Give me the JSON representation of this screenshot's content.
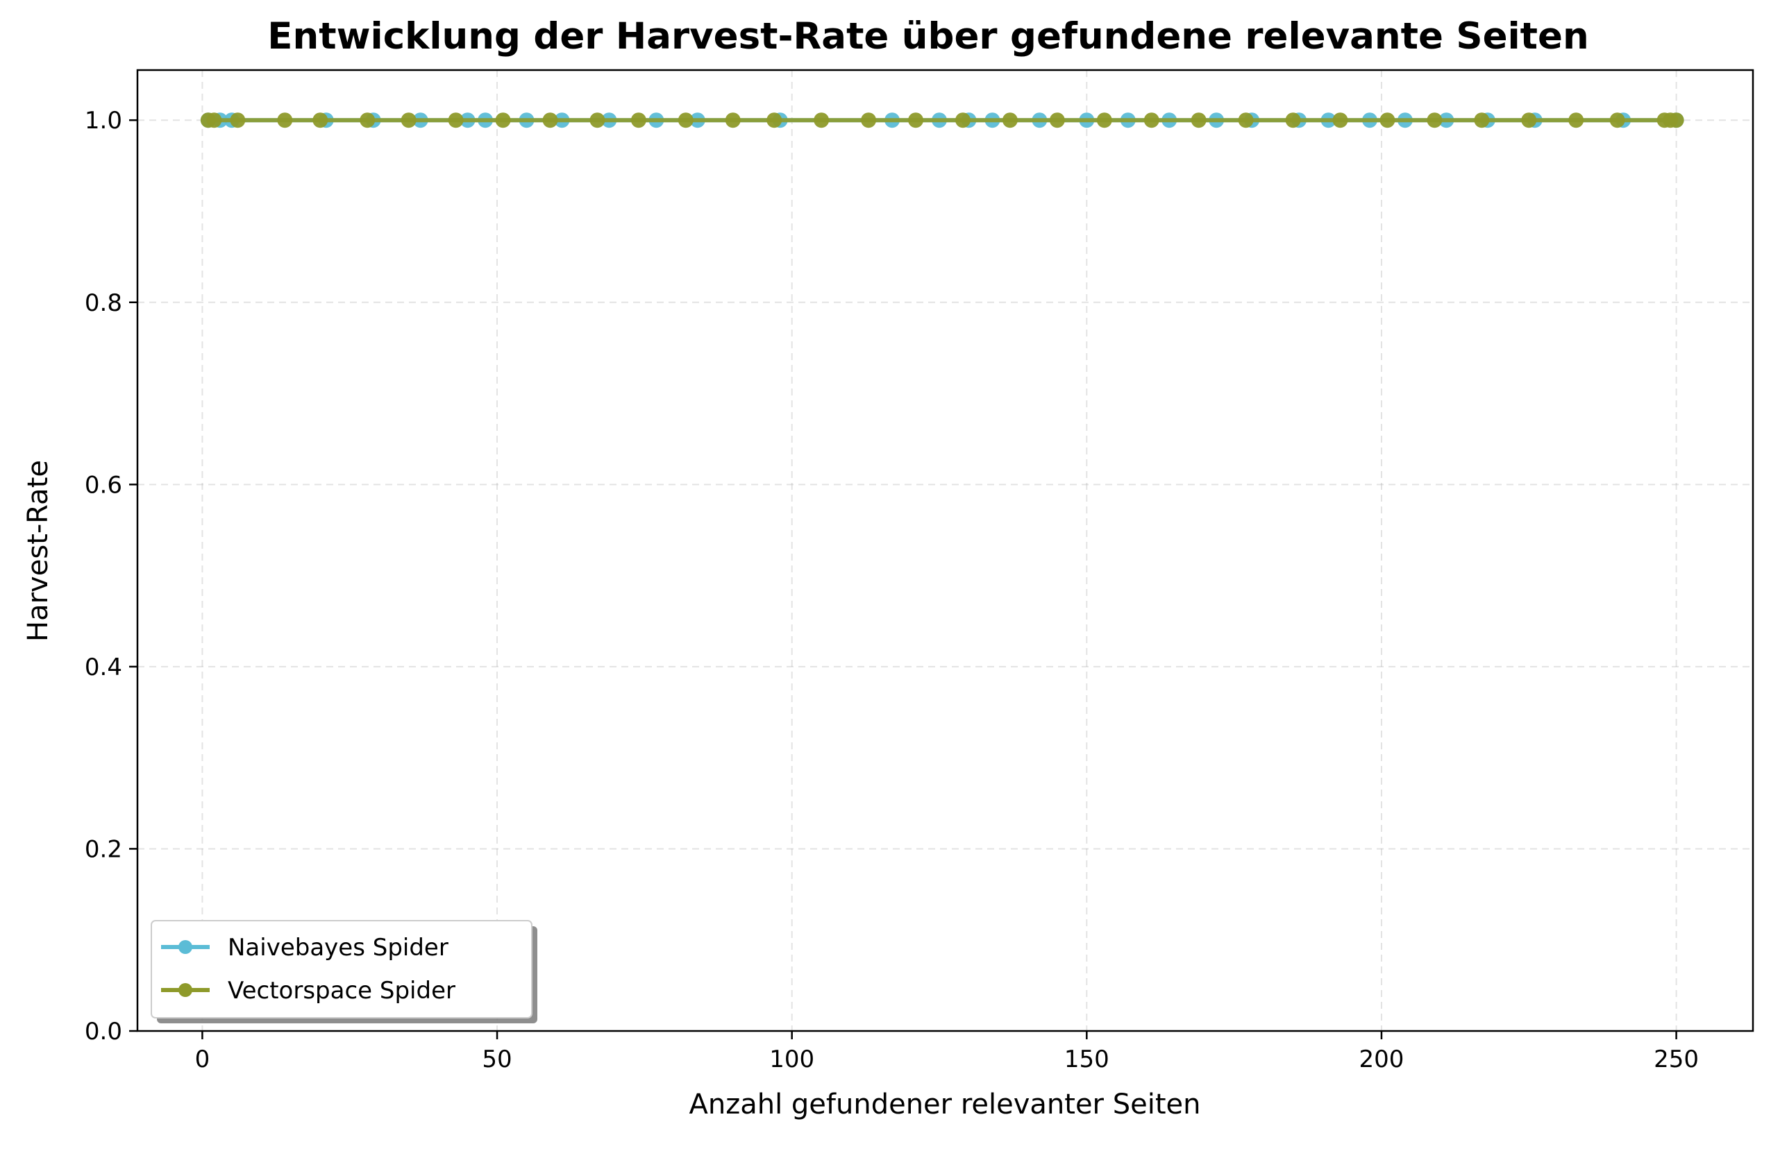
{
  "chart_data": {
    "type": "line",
    "title": "Entwicklung der Harvest-Rate über gefundene relevante Seiten",
    "xlabel": "Anzahl gefundener relevanter Seiten",
    "ylabel": "Harvest-Rate",
    "xlim": [
      -11,
      263
    ],
    "ylim": [
      0,
      1.055
    ],
    "xticks": [
      0,
      50,
      100,
      150,
      200,
      250
    ],
    "yticks": [
      0.0,
      0.2,
      0.4,
      0.6,
      0.8,
      1.0
    ],
    "xtick_labels": [
      "0",
      "50",
      "100",
      "150",
      "200",
      "250"
    ],
    "ytick_labels": [
      "0.0",
      "0.2",
      "0.4",
      "0.6",
      "0.8",
      "1.0"
    ],
    "grid": true,
    "legend_position": "lower-left",
    "series": [
      {
        "name": "Naivebayes Spider",
        "color": "#5bbcd6",
        "x": [
          1,
          3,
          5,
          21,
          29,
          37,
          45,
          48,
          55,
          61,
          69,
          77,
          84,
          98,
          117,
          125,
          130,
          134,
          142,
          150,
          157,
          164,
          172,
          178,
          186,
          191,
          198,
          204,
          211,
          218,
          226,
          241,
          250
        ],
        "y": [
          1,
          1,
          1,
          1,
          1,
          1,
          1,
          1,
          1,
          1,
          1,
          1,
          1,
          1,
          1,
          1,
          1,
          1,
          1,
          1,
          1,
          1,
          1,
          1,
          1,
          1,
          1,
          1,
          1,
          1,
          1,
          1,
          1
        ]
      },
      {
        "name": "Vectorspace Spider",
        "color": "#8e9a2a",
        "x": [
          1,
          2,
          6,
          14,
          20,
          28,
          35,
          43,
          51,
          59,
          67,
          74,
          82,
          90,
          97,
          105,
          113,
          121,
          129,
          137,
          145,
          153,
          161,
          169,
          177,
          185,
          193,
          201,
          209,
          217,
          225,
          233,
          240,
          248,
          249,
          250
        ],
        "y": [
          1,
          1,
          1,
          1,
          1,
          1,
          1,
          1,
          1,
          1,
          1,
          1,
          1,
          1,
          1,
          1,
          1,
          1,
          1,
          1,
          1,
          1,
          1,
          1,
          1,
          1,
          1,
          1,
          1,
          1,
          1,
          1,
          1,
          1,
          1,
          1
        ]
      }
    ]
  }
}
